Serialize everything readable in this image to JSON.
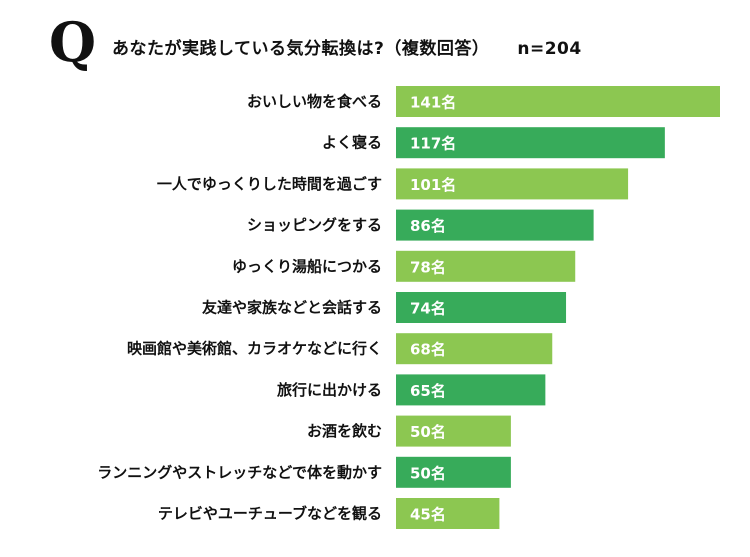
{
  "header": {
    "q_mark": "Q",
    "question": "あなたが実践している気分転換は?（複数回答）",
    "n_count": "n=204"
  },
  "chart_data": {
    "type": "bar",
    "orientation": "horizontal",
    "title": "あなたが実践している気分転換は?（複数回答）",
    "categories": [
      "おいしい物を食べる",
      "よく寝る",
      "一人でゆっくりした時間を過ごす",
      "ショッピングをする",
      "ゆっくり湯船につかる",
      "友達や家族などと会話する",
      "映画館や美術館、カラオケなどに行く",
      "旅行に出かける",
      "お酒を飲む",
      "ランニングやストレッチなどで体を動かす",
      "テレビやユーチューブなどを観る"
    ],
    "values": [
      141,
      117,
      101,
      86,
      78,
      74,
      68,
      65,
      50,
      50,
      45
    ],
    "value_labels": [
      "141名",
      "117名",
      "101名",
      "86名",
      "78名",
      "74名",
      "68名",
      "65名",
      "50名",
      "50名",
      "45名"
    ],
    "bar_colors": [
      "#8cc751",
      "#37ab5a",
      "#8cc751",
      "#37ab5a",
      "#8cc751",
      "#37ab5a",
      "#8cc751",
      "#37ab5a",
      "#8cc751",
      "#37ab5a",
      "#8cc751"
    ],
    "xlim": [
      0,
      141
    ],
    "grid": false,
    "legend": false
  }
}
